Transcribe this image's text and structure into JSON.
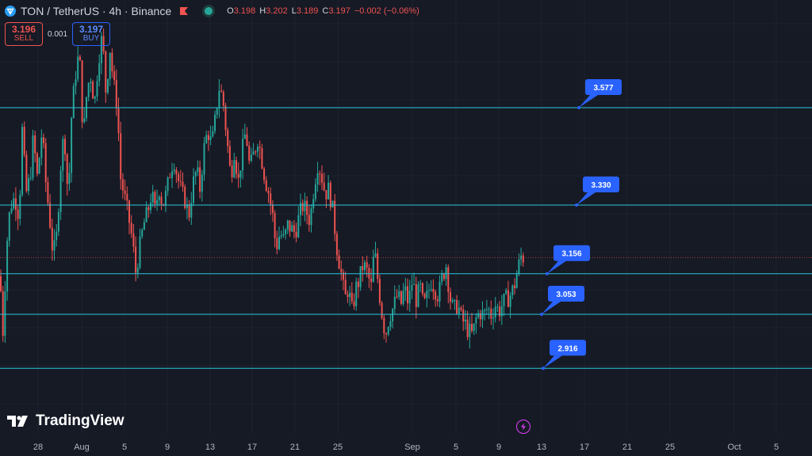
{
  "header": {
    "title": "TON / TetherUS · 4h · Binance",
    "ohlc": [
      {
        "k": "O",
        "v": "3.198"
      },
      {
        "k": "H",
        "v": "3.202"
      },
      {
        "k": "L",
        "v": "3.189"
      },
      {
        "k": "C",
        "v": "3.197"
      },
      {
        "k": "",
        "v": "−0.002 (−0.06%)"
      }
    ]
  },
  "trade": {
    "sell_price": "3.196",
    "sell_label": "SELL",
    "spread": "0.001",
    "buy_price": "3.197",
    "buy_label": "BUY"
  },
  "branding": "TradingView",
  "colors": {
    "up": "#26a69a",
    "down": "#ef5350",
    "level": "#26c6da",
    "label_bg": "#2962ff",
    "bg": "#161a25"
  },
  "chart_data": {
    "type": "candlestick",
    "y_range": [
      2.75,
      3.85
    ],
    "x_tick_labels": [
      "28",
      "Aug",
      "5",
      "9",
      "13",
      "17",
      "21",
      "25",
      "Sep",
      "5",
      "9",
      "13",
      "17",
      "21",
      "25",
      "Oct",
      "5"
    ],
    "levels": [
      {
        "label": "3.577",
        "value": 3.577
      },
      {
        "label": "3.330",
        "value": 3.33
      },
      {
        "label": "3.156",
        "value": 3.156
      },
      {
        "label": "3.053",
        "value": 3.053
      },
      {
        "label": "2.916",
        "value": 2.916
      }
    ],
    "last_price": 3.197,
    "close_path": [
      [
        0,
        3.15
      ],
      [
        4,
        3.0
      ],
      [
        8,
        3.22
      ],
      [
        13,
        3.33
      ],
      [
        19,
        3.35
      ],
      [
        24,
        3.3
      ],
      [
        28,
        3.52
      ],
      [
        33,
        3.36
      ],
      [
        38,
        3.4
      ],
      [
        42,
        3.5
      ],
      [
        47,
        3.4
      ],
      [
        53,
        3.52
      ],
      [
        58,
        3.38
      ],
      [
        62,
        3.31
      ],
      [
        67,
        3.2
      ],
      [
        72,
        3.26
      ],
      [
        76,
        3.42
      ],
      [
        81,
        3.52
      ],
      [
        86,
        3.34
      ],
      [
        90,
        3.55
      ],
      [
        95,
        3.66
      ],
      [
        100,
        3.72
      ],
      [
        105,
        3.5
      ],
      [
        110,
        3.63
      ],
      [
        115,
        3.66
      ],
      [
        119,
        3.58
      ],
      [
        124,
        3.7
      ],
      [
        129,
        3.76
      ],
      [
        134,
        3.6
      ],
      [
        138,
        3.74
      ],
      [
        143,
        3.64
      ],
      [
        148,
        3.58
      ],
      [
        152,
        3.4
      ],
      [
        157,
        3.35
      ],
      [
        162,
        3.3
      ],
      [
        167,
        3.24
      ],
      [
        171,
        3.16
      ],
      [
        176,
        3.22
      ],
      [
        181,
        3.28
      ],
      [
        186,
        3.31
      ],
      [
        191,
        3.36
      ],
      [
        196,
        3.31
      ],
      [
        200,
        3.38
      ],
      [
        205,
        3.33
      ],
      [
        210,
        3.36
      ],
      [
        214,
        3.41
      ],
      [
        219,
        3.45
      ],
      [
        224,
        3.4
      ],
      [
        229,
        3.36
      ],
      [
        234,
        3.34
      ],
      [
        238,
        3.3
      ],
      [
        243,
        3.38
      ],
      [
        248,
        3.42
      ],
      [
        252,
        3.37
      ],
      [
        257,
        3.47
      ],
      [
        262,
        3.52
      ],
      [
        267,
        3.48
      ],
      [
        271,
        3.54
      ],
      [
        276,
        3.63
      ],
      [
        281,
        3.6
      ],
      [
        286,
        3.5
      ],
      [
        291,
        3.4
      ],
      [
        296,
        3.48
      ],
      [
        300,
        3.38
      ],
      [
        305,
        3.46
      ],
      [
        310,
        3.52
      ],
      [
        315,
        3.42
      ],
      [
        320,
        3.46
      ],
      [
        325,
        3.5
      ],
      [
        329,
        3.46
      ],
      [
        334,
        3.4
      ],
      [
        339,
        3.36
      ],
      [
        344,
        3.3
      ],
      [
        348,
        3.22
      ],
      [
        353,
        3.26
      ],
      [
        358,
        3.24
      ],
      [
        363,
        3.28
      ],
      [
        367,
        3.27
      ],
      [
        372,
        3.26
      ],
      [
        377,
        3.3
      ],
      [
        382,
        3.33
      ],
      [
        387,
        3.31
      ],
      [
        391,
        3.29
      ],
      [
        396,
        3.38
      ],
      [
        401,
        3.44
      ],
      [
        406,
        3.4
      ],
      [
        410,
        3.36
      ],
      [
        415,
        3.37
      ],
      [
        420,
        3.31
      ],
      [
        425,
        3.22
      ],
      [
        430,
        3.16
      ],
      [
        435,
        3.09
      ],
      [
        439,
        3.12
      ],
      [
        444,
        3.06
      ],
      [
        449,
        3.12
      ],
      [
        453,
        3.14
      ],
      [
        458,
        3.18
      ],
      [
        463,
        3.16
      ],
      [
        468,
        3.12
      ],
      [
        472,
        3.22
      ],
      [
        477,
        3.13
      ],
      [
        482,
        3.05
      ],
      [
        486,
        3.0
      ],
      [
        491,
        3.05
      ],
      [
        496,
        3.07
      ],
      [
        501,
        3.1
      ],
      [
        506,
        3.08
      ],
      [
        510,
        3.12
      ],
      [
        515,
        3.08
      ],
      [
        520,
        3.14
      ],
      [
        525,
        3.09
      ],
      [
        530,
        3.12
      ],
      [
        534,
        3.07
      ],
      [
        539,
        3.1
      ],
      [
        544,
        3.14
      ],
      [
        548,
        3.12
      ],
      [
        553,
        3.1
      ],
      [
        558,
        3.15
      ],
      [
        563,
        3.18
      ],
      [
        567,
        3.1
      ],
      [
        572,
        3.06
      ],
      [
        577,
        3.08
      ],
      [
        582,
        3.04
      ],
      [
        586,
        3.03
      ],
      [
        591,
        3.01
      ],
      [
        596,
        3.0
      ],
      [
        600,
        3.04
      ],
      [
        605,
        3.06
      ],
      [
        610,
        3.05
      ],
      [
        615,
        3.07
      ],
      [
        620,
        3.05
      ],
      [
        624,
        3.08
      ],
      [
        629,
        3.06
      ],
      [
        634,
        3.08
      ],
      [
        638,
        3.09
      ],
      [
        643,
        3.1
      ],
      [
        648,
        3.12
      ],
      [
        652,
        3.16
      ],
      [
        657,
        3.2
      ],
      [
        661,
        3.197
      ]
    ]
  }
}
